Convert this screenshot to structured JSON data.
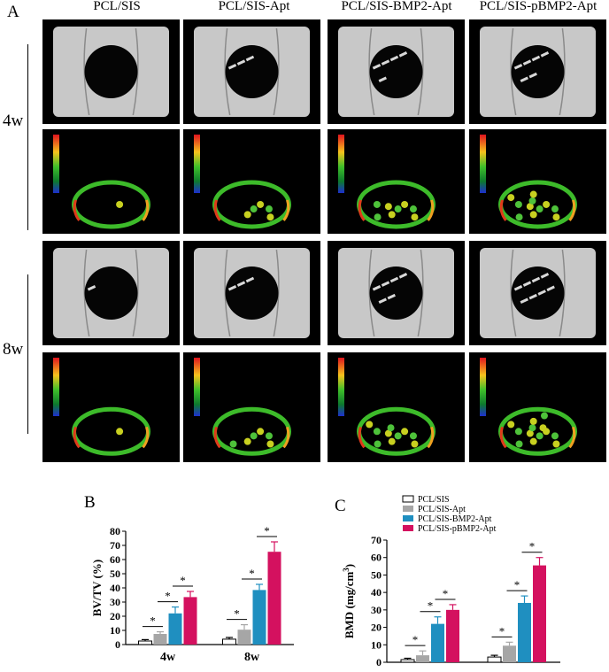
{
  "panels": {
    "a": "A",
    "b": "B",
    "c": "C"
  },
  "columns": [
    "PCL/SIS",
    "PCL/SIS-Apt",
    "PCL/SIS-BMP2-Apt",
    "PCL/SIS-pBMP2-Apt"
  ],
  "rows": [
    "4w",
    "8w"
  ],
  "colors": {
    "PCL/SIS": "#ffffff",
    "PCL/SIS-Apt": "#a6a6a6",
    "PCL/SIS-BMP2-Apt": "#1f8fc0",
    "PCL/SIS-pBMP2-Apt": "#d4115f",
    "bone": "#c8c8c8",
    "image_bg": "#000000"
  },
  "chart_data": [
    {
      "type": "bar",
      "ylabel": "BV/TV (%)",
      "categories": [
        "4w",
        "8w"
      ],
      "ylim": [
        0,
        80
      ],
      "yticks": [
        0,
        10,
        20,
        30,
        40,
        50,
        60,
        70,
        80
      ],
      "series": [
        {
          "name": "PCL/SIS",
          "values": [
            2.5,
            3.8
          ],
          "errors": [
            1.0,
            1.2
          ]
        },
        {
          "name": "PCL/SIS-Apt",
          "values": [
            7.5,
            10.5
          ],
          "errors": [
            1.5,
            3.5
          ]
        },
        {
          "name": "PCL/SIS-BMP2-Apt",
          "values": [
            22,
            38.5
          ],
          "errors": [
            4.5,
            4.0
          ]
        },
        {
          "name": "PCL/SIS-pBMP2-Apt",
          "values": [
            33.5,
            65.5
          ],
          "errors": [
            4.0,
            7.0
          ]
        }
      ],
      "significance": [
        "*",
        "*",
        "*",
        "*",
        "*",
        "*"
      ],
      "grid": false
    },
    {
      "type": "bar",
      "ylabel": "BMD (mg/cm³)",
      "categories": [
        "4w",
        "8w"
      ],
      "ylim": [
        0,
        70
      ],
      "yticks": [
        0,
        10,
        20,
        30,
        40,
        50,
        60,
        70
      ],
      "series": [
        {
          "name": "PCL/SIS",
          "values": [
            1.5,
            3.0
          ],
          "errors": [
            0.8,
            1.0
          ]
        },
        {
          "name": "PCL/SIS-Apt",
          "values": [
            4.0,
            9.5
          ],
          "errors": [
            2.5,
            2.0
          ]
        },
        {
          "name": "PCL/SIS-BMP2-Apt",
          "values": [
            22,
            34
          ],
          "errors": [
            4.0,
            4.0
          ]
        },
        {
          "name": "PCL/SIS-pBMP2-Apt",
          "values": [
            30,
            55.5
          ],
          "errors": [
            3.0,
            4.5
          ]
        }
      ],
      "significance": [
        "*",
        "*",
        "*",
        "*",
        "*",
        "*"
      ],
      "legend": [
        "PCL/SIS",
        "PCL/SIS-Apt",
        "PCL/SIS-BMP2-Apt",
        "PCL/SIS-pBMP2-Apt"
      ],
      "legend_position": "top",
      "grid": false
    }
  ]
}
